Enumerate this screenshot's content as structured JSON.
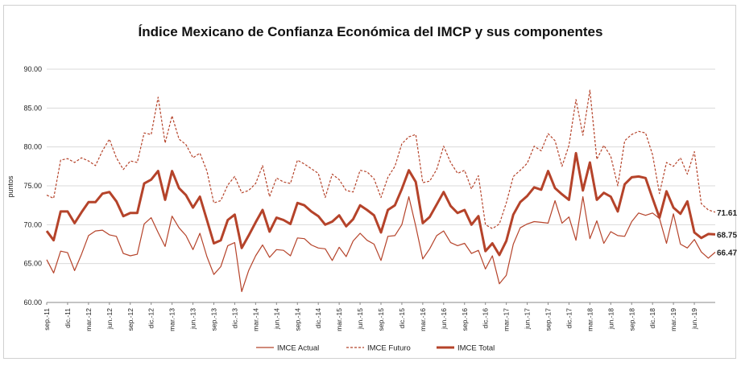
{
  "chart_data": {
    "type": "line",
    "title": "Índice Mexicano de Confianza Económica del IMCP y sus componentes",
    "ylabel": "puntos",
    "ylim": [
      60,
      90
    ],
    "yticks": [
      "60.00",
      "65.00",
      "70.00",
      "75.00",
      "80.00",
      "85.00",
      "90.00"
    ],
    "grid": true,
    "legend": "bottom",
    "xticks": [
      "sep.-11",
      "dic.-11",
      "mar.-12",
      "jun.-12",
      "sep.-12",
      "dic.-12",
      "mar.-13",
      "jun.-13",
      "sep.-13",
      "dic.-13",
      "mar.-14",
      "jun.-14",
      "sep.-14",
      "dic.-14",
      "mar.-15",
      "jun.-15",
      "sep.-15",
      "dic.-15",
      "mar.-16",
      "jun.-16",
      "sep.-16",
      "dic.-16",
      "mar.-17",
      "jun.-17",
      "sep.-17",
      "dic.-17",
      "mar.-18",
      "jun.-18",
      "sep.-18",
      "dic.-18",
      "mar.-19",
      "jun.-19"
    ],
    "series": [
      {
        "name": "IMCE Actual",
        "color": "#b5432a",
        "style": "thin",
        "end_label": "66.47",
        "values": [
          65.5,
          63.8,
          66.6,
          66.4,
          64.1,
          66.2,
          68.6,
          69.2,
          69.3,
          68.7,
          68.5,
          66.3,
          66.0,
          66.2,
          70.1,
          70.9,
          69.0,
          67.2,
          71.1,
          69.6,
          68.6,
          66.8,
          68.9,
          65.9,
          63.6,
          64.6,
          67.3,
          67.7,
          61.4,
          64.1,
          66.0,
          67.4,
          65.8,
          66.8,
          66.7,
          66.0,
          68.3,
          68.2,
          67.4,
          67.0,
          66.9,
          65.4,
          67.1,
          65.9,
          67.9,
          68.9,
          68.0,
          67.5,
          65.4,
          68.5,
          68.6,
          70.0,
          73.6,
          69.8,
          65.6,
          66.9,
          68.6,
          69.2,
          67.7,
          67.3,
          67.6,
          66.3,
          66.7,
          64.3,
          66.0,
          62.4,
          63.5,
          67.5,
          69.6,
          70.1,
          70.4,
          70.3,
          70.2,
          73.1,
          70.2,
          71.0,
          68.0,
          73.6,
          68.2,
          70.5,
          67.6,
          69.1,
          68.6,
          68.5,
          70.4,
          71.5,
          71.2,
          71.5,
          70.8,
          67.6,
          71.4,
          67.5,
          67.0,
          68.1,
          66.5,
          65.7,
          66.47
        ]
      },
      {
        "name": "IMCE Futuro",
        "color": "#b5432a",
        "style": "dashed",
        "end_label": "71.61",
        "values": [
          73.8,
          73.4,
          78.3,
          78.5,
          78.0,
          78.6,
          78.2,
          77.6,
          79.5,
          81.0,
          78.6,
          77.1,
          78.2,
          78.0,
          81.8,
          81.6,
          86.4,
          80.5,
          84.0,
          81.0,
          80.3,
          78.6,
          79.2,
          76.9,
          72.8,
          73.1,
          75.1,
          76.2,
          74.1,
          74.4,
          75.3,
          77.6,
          73.6,
          76.0,
          75.5,
          75.3,
          78.3,
          77.8,
          77.2,
          76.6,
          73.5,
          76.5,
          75.8,
          74.4,
          74.2,
          77.0,
          76.8,
          75.9,
          73.5,
          76.1,
          77.5,
          80.4,
          81.3,
          81.6,
          75.4,
          75.6,
          77.1,
          80.1,
          78.0,
          76.6,
          77.0,
          74.6,
          76.3,
          70.0,
          69.5,
          70.1,
          72.8,
          76.2,
          77.0,
          77.9,
          80.1,
          79.5,
          81.7,
          80.8,
          77.5,
          80.2,
          86.1,
          81.5,
          87.3,
          78.4,
          80.2,
          78.8,
          75.0,
          80.8,
          81.6,
          82.0,
          81.8,
          79.0,
          74.0,
          78.0,
          77.5,
          78.6,
          76.5,
          79.4,
          72.7,
          71.9,
          71.61
        ]
      },
      {
        "name": "IMCE Total",
        "color": "#b5432a",
        "style": "thick",
        "end_label": "68.75",
        "values": [
          69.2,
          68.0,
          71.7,
          71.7,
          70.2,
          71.6,
          72.9,
          72.9,
          74.0,
          74.2,
          73.0,
          71.1,
          71.5,
          71.5,
          75.3,
          75.8,
          76.9,
          73.2,
          76.9,
          74.7,
          73.8,
          72.2,
          73.6,
          70.6,
          67.6,
          68.0,
          70.6,
          71.3,
          67.0,
          68.6,
          70.3,
          71.9,
          69.1,
          70.9,
          70.6,
          70.1,
          72.8,
          72.5,
          71.7,
          71.1,
          70.0,
          70.4,
          71.2,
          69.8,
          70.7,
          72.5,
          71.9,
          71.2,
          69.0,
          71.9,
          72.5,
          74.6,
          77.0,
          75.5,
          70.2,
          71.0,
          72.6,
          74.2,
          72.4,
          71.5,
          71.9,
          70.0,
          71.1,
          66.6,
          67.6,
          66.1,
          67.9,
          71.3,
          72.9,
          73.7,
          74.8,
          74.5,
          76.9,
          74.7,
          73.9,
          73.2,
          79.2,
          74.4,
          78.0,
          73.2,
          74.1,
          73.6,
          71.7,
          75.2,
          76.1,
          76.2,
          76.0,
          73.4,
          70.9,
          74.3,
          72.2,
          71.4,
          73.0,
          69.0,
          68.3,
          68.8,
          68.75
        ]
      }
    ]
  }
}
